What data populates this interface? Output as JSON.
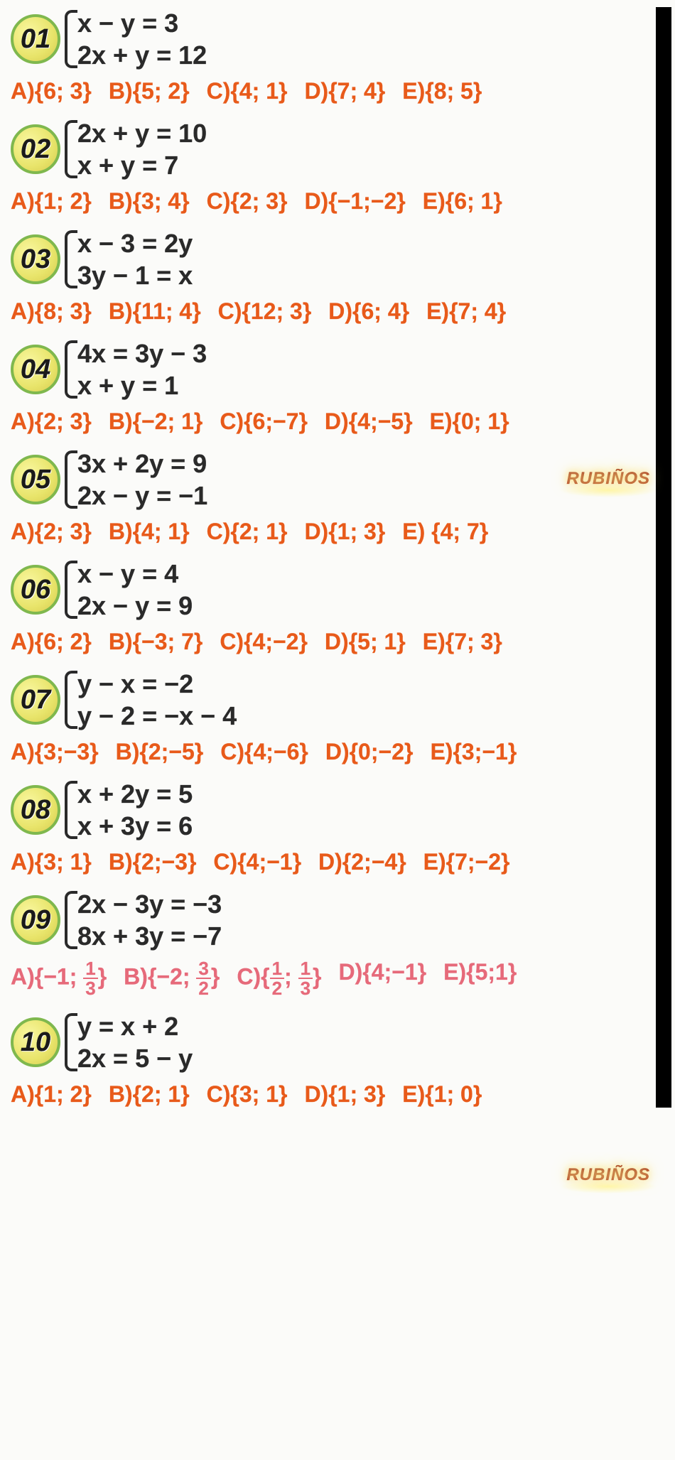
{
  "colors": {
    "answer_primary": "#e85a1a",
    "answer_faded": "#e66a7a",
    "badge_border": "#7fb84e",
    "badge_fill": "#e8e46a",
    "text": "#2a2a2a",
    "bg": "#fbfbf9"
  },
  "watermark": "RUBIÑOS",
  "problems": [
    {
      "num": "01",
      "eq1": "x − y = 3",
      "eq2": "2x + y = 12",
      "style": "orange",
      "opts": [
        "A){6; 3}",
        "B){5; 2}",
        "C){4; 1}",
        "D){7; 4}",
        "E){8; 5}"
      ]
    },
    {
      "num": "02",
      "eq1": "2x + y = 10",
      "eq2": "x + y = 7",
      "style": "orange",
      "opts": [
        "A){1; 2}",
        "B){3; 4}",
        "C){2; 3}",
        "D){−1;−2}",
        "E){6; 1}"
      ]
    },
    {
      "num": "03",
      "eq1": "x − 3 = 2y",
      "eq2": "3y − 1 = x",
      "style": "orange",
      "opts": [
        "A){8; 3}",
        "B){11; 4}",
        "C){12; 3}",
        "D){6; 4}",
        "E){7; 4}"
      ]
    },
    {
      "num": "04",
      "eq1": "4x = 3y − 3",
      "eq2": "x + y = 1",
      "style": "orange",
      "opts": [
        "A){2; 3}",
        "B){−2; 1}",
        "C){6;−7}",
        "D){4;−5}",
        "E){0; 1}"
      ]
    },
    {
      "num": "05",
      "eq1": "3x + 2y = 9",
      "eq2": "2x − y = −1",
      "style": "orange",
      "opts": [
        "A){2; 3}",
        "B){4; 1}",
        "C){2; 1}",
        "D){1; 3}",
        "E) {4; 7}"
      ]
    },
    {
      "num": "06",
      "eq1": "x − y = 4",
      "eq2": "2x − y = 9",
      "style": "orange",
      "opts": [
        "A){6; 2}",
        "B){−3; 7}",
        "C){4;−2}",
        "D){5; 1}",
        "E){7; 3}"
      ]
    },
    {
      "num": "07",
      "eq1": "y − x = −2",
      "eq2": "y − 2 = −x − 4",
      "style": "orange",
      "opts": [
        "A){3;−3}",
        "B){2;−5}",
        "C){4;−6}",
        "D){0;−2}",
        "E){3;−1}"
      ]
    },
    {
      "num": "08",
      "eq1": "x + 2y = 5",
      "eq2": "x + 3y = 6",
      "style": "orange",
      "opts": [
        "A){3; 1}",
        "B){2;−3}",
        "C){4;−1}",
        "D){2;−4}",
        "E){7;−2}"
      ]
    },
    {
      "num": "09",
      "eq1": "2x − 3y = −3",
      "eq2": "8x + 3y = −7",
      "style": "pink",
      "opts_frac": [
        {
          "pre": "A)",
          "a": "−1",
          "b_n": "1",
          "b_d": "3"
        },
        {
          "pre": "B)",
          "a": "−2",
          "b_n": "3",
          "b_d": "2"
        },
        {
          "pre": "C)",
          "a_n": "1",
          "a_d": "2",
          "b_n": "1",
          "b_d": "3"
        },
        {
          "pre": "D)",
          "plain": "{4;−1}"
        },
        {
          "pre": "E)",
          "plain": "{5;1}"
        }
      ]
    },
    {
      "num": "10",
      "eq1": "y = x + 2",
      "eq2": "2x = 5 − y",
      "style": "orange",
      "opts": [
        "A){1; 2}",
        "B){2; 1}",
        "C){3; 1}",
        "D){1; 3}",
        "E){1; 0}"
      ]
    }
  ]
}
